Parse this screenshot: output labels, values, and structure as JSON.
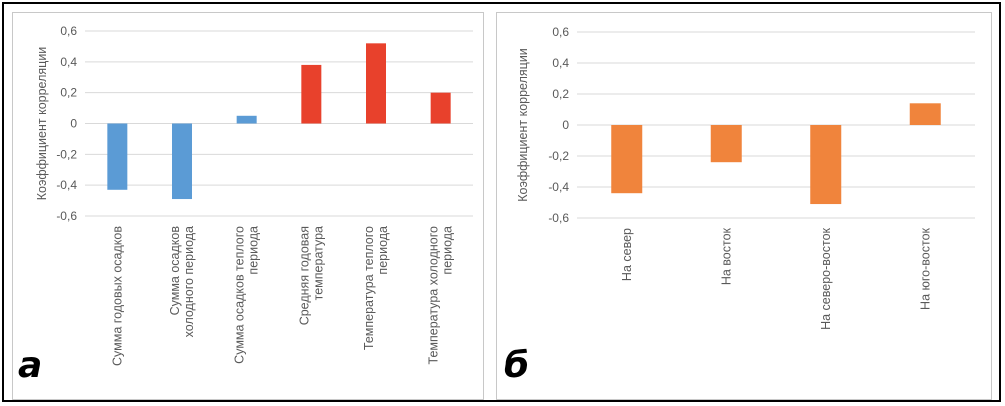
{
  "chart_data": [
    {
      "type": "bar",
      "panel_label": "а",
      "ylabel": "Коэффициент корреляции",
      "ylim": [
        -0.6,
        0.6
      ],
      "yticks": [
        "0,6",
        "0,4",
        "0,2",
        "0",
        "-0,2",
        "-0,4",
        "-0,6"
      ],
      "grid": true,
      "categories": [
        [
          "Сумма годовых осадков"
        ],
        [
          "Сумма осадков",
          "холодного периода"
        ],
        [
          "Сумма осадков теплого",
          "периода"
        ],
        [
          "Средняя годовая",
          "температура"
        ],
        [
          "Температура теплого",
          "периода"
        ],
        [
          "Температура холодного",
          "периода"
        ]
      ],
      "values": [
        -0.43,
        -0.49,
        0.05,
        0.38,
        0.52,
        0.2
      ],
      "colors": [
        "#5b9bd5",
        "#5b9bd5",
        "#5b9bd5",
        "#e8412c",
        "#e8412c",
        "#e8412c"
      ]
    },
    {
      "type": "bar",
      "panel_label": "б",
      "ylabel": "Коэффициент корреляции",
      "ylim": [
        -0.6,
        0.6
      ],
      "yticks": [
        "0,6",
        "0,4",
        "0,2",
        "0",
        "-0,2",
        "-0,4",
        "-0,6"
      ],
      "grid": true,
      "categories": [
        [
          "На север"
        ],
        [
          "На восток"
        ],
        [
          "На северо-восток"
        ],
        [
          "На юго-восток"
        ]
      ],
      "values": [
        -0.44,
        -0.24,
        -0.51,
        0.14
      ],
      "colors": [
        "#f0843c",
        "#f0843c",
        "#f0843c",
        "#f0843c"
      ]
    }
  ]
}
